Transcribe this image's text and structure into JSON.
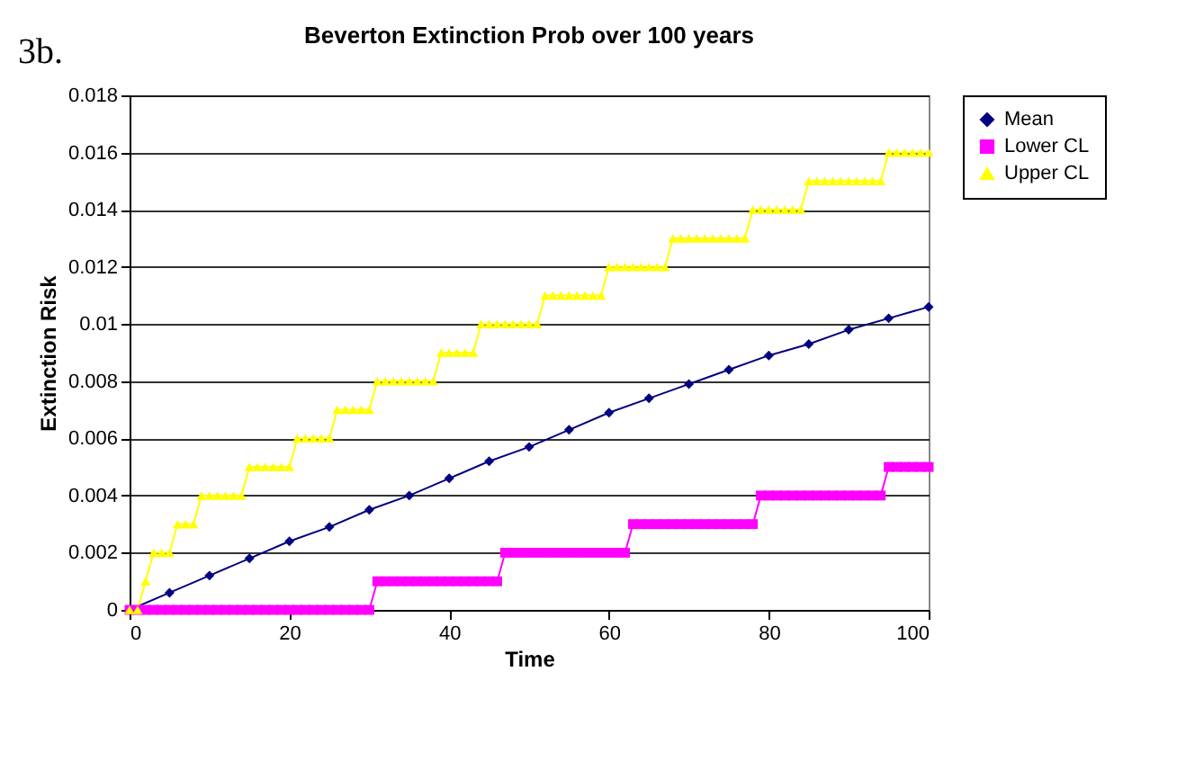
{
  "chart_data": {
    "type": "line",
    "title": "Beverton Extinction Prob over 100 years",
    "xlabel": "Time",
    "ylabel": "Extinction Risk",
    "annotations": [
      "3b."
    ],
    "x": [
      0,
      1,
      2,
      3,
      4,
      5,
      6,
      7,
      8,
      9,
      10,
      11,
      12,
      13,
      14,
      15,
      16,
      17,
      18,
      19,
      20,
      21,
      22,
      23,
      24,
      25,
      26,
      27,
      28,
      29,
      30,
      31,
      32,
      33,
      34,
      35,
      36,
      37,
      38,
      39,
      40,
      41,
      42,
      43,
      44,
      45,
      46,
      47,
      48,
      49,
      50,
      51,
      52,
      53,
      54,
      55,
      56,
      57,
      58,
      59,
      60,
      61,
      62,
      63,
      64,
      65,
      66,
      67,
      68,
      69,
      70,
      71,
      72,
      73,
      74,
      75,
      76,
      77,
      78,
      79,
      80,
      81,
      82,
      83,
      84,
      85,
      86,
      87,
      88,
      89,
      90,
      91,
      92,
      93,
      94,
      95,
      96,
      97,
      98,
      99,
      100
    ],
    "series": [
      {
        "name": "Mean",
        "color": "#000080",
        "marker": "diamond",
        "x": [
          0,
          5,
          10,
          15,
          20,
          25,
          30,
          35,
          40,
          45,
          50,
          55,
          60,
          65,
          70,
          75,
          80,
          85,
          90,
          95,
          100
        ],
        "values": [
          0,
          0.0006,
          0.0012,
          0.0018,
          0.0024,
          0.0029,
          0.0035,
          0.004,
          0.0046,
          0.0052,
          0.0057,
          0.0063,
          0.0069,
          0.0074,
          0.0079,
          0.0084,
          0.0089,
          0.0093,
          0.0098,
          0.0102,
          0.0106
        ]
      },
      {
        "name": "Lower CL",
        "color": "#ff00ff",
        "marker": "square",
        "values": [
          0,
          0,
          0,
          0,
          0,
          0,
          0,
          0,
          0,
          0,
          0,
          0,
          0,
          0,
          0,
          0,
          0,
          0,
          0,
          0,
          0,
          0,
          0,
          0,
          0,
          0,
          0,
          0,
          0,
          0,
          0,
          0.001,
          0.001,
          0.001,
          0.001,
          0.001,
          0.001,
          0.001,
          0.001,
          0.001,
          0.001,
          0.001,
          0.001,
          0.001,
          0.001,
          0.001,
          0.001,
          0.002,
          0.002,
          0.002,
          0.002,
          0.002,
          0.002,
          0.002,
          0.002,
          0.002,
          0.002,
          0.002,
          0.002,
          0.002,
          0.002,
          0.002,
          0.002,
          0.003,
          0.003,
          0.003,
          0.003,
          0.003,
          0.003,
          0.003,
          0.003,
          0.003,
          0.003,
          0.003,
          0.003,
          0.003,
          0.003,
          0.003,
          0.003,
          0.004,
          0.004,
          0.004,
          0.004,
          0.004,
          0.004,
          0.004,
          0.004,
          0.004,
          0.004,
          0.004,
          0.004,
          0.004,
          0.004,
          0.004,
          0.004,
          0.005,
          0.005,
          0.005,
          0.005,
          0.005,
          0.005
        ]
      },
      {
        "name": "Upper CL",
        "color": "#ffff00",
        "marker": "triangle",
        "values": [
          0,
          0,
          0.001,
          0.002,
          0.002,
          0.002,
          0.003,
          0.003,
          0.003,
          0.004,
          0.004,
          0.004,
          0.004,
          0.004,
          0.004,
          0.005,
          0.005,
          0.005,
          0.005,
          0.005,
          0.005,
          0.006,
          0.006,
          0.006,
          0.006,
          0.006,
          0.007,
          0.007,
          0.007,
          0.007,
          0.007,
          0.008,
          0.008,
          0.008,
          0.008,
          0.008,
          0.008,
          0.008,
          0.008,
          0.009,
          0.009,
          0.009,
          0.009,
          0.009,
          0.01,
          0.01,
          0.01,
          0.01,
          0.01,
          0.01,
          0.01,
          0.01,
          0.011,
          0.011,
          0.011,
          0.011,
          0.011,
          0.011,
          0.011,
          0.011,
          0.012,
          0.012,
          0.012,
          0.012,
          0.012,
          0.012,
          0.012,
          0.012,
          0.013,
          0.013,
          0.013,
          0.013,
          0.013,
          0.013,
          0.013,
          0.013,
          0.013,
          0.013,
          0.014,
          0.014,
          0.014,
          0.014,
          0.014,
          0.014,
          0.014,
          0.015,
          0.015,
          0.015,
          0.015,
          0.015,
          0.015,
          0.015,
          0.015,
          0.015,
          0.015,
          0.016,
          0.016,
          0.016,
          0.016,
          0.016,
          0.016
        ]
      }
    ],
    "xlim": [
      0,
      100
    ],
    "xticks": [
      0,
      20,
      40,
      60,
      80,
      100
    ],
    "ylim": [
      0,
      0.018
    ],
    "yticks": [
      0,
      0.002,
      0.004,
      0.006,
      0.008,
      0.01,
      0.012,
      0.014,
      0.016,
      0.018
    ],
    "grid": "y",
    "legend": "right",
    "line_style": "solid"
  }
}
